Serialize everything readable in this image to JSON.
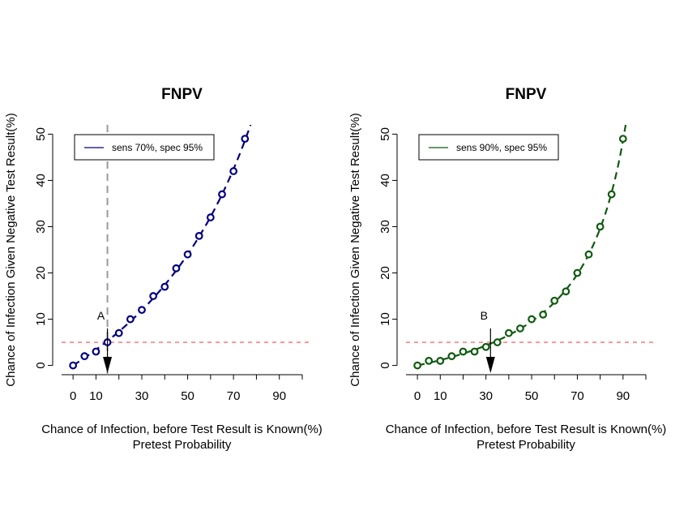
{
  "chart_data": [
    {
      "type": "line",
      "title": "FNPV",
      "xlabel_line1": "Chance of Infection, before Test Result is Known(%)",
      "xlabel_line2": "Pretest Probability",
      "ylabel": "Chance of Infection Given Negative Test Result(%)",
      "xlim": [
        -5,
        100
      ],
      "ylim": [
        -2,
        52
      ],
      "x_ticks": [
        0,
        10,
        30,
        50,
        70,
        90
      ],
      "x_tick_labels": [
        "0",
        "10",
        "30",
        "50",
        "70",
        "90"
      ],
      "y_ticks": [
        0,
        10,
        20,
        30,
        40,
        50
      ],
      "y_tick_labels": [
        "0",
        "10",
        "20",
        "30",
        "40",
        "50"
      ],
      "legend": {
        "label": "sens 70%, spec 95%",
        "position": "top-left"
      },
      "sensitivity": 0.7,
      "specificity": 0.95,
      "color": "#00007f",
      "threshold": {
        "y": 5,
        "color": "#ff6b6b"
      },
      "vline": {
        "x": 15,
        "color": "#999999"
      },
      "annotation": {
        "label": "A",
        "x": 15
      },
      "points": {
        "x": [
          0,
          5,
          10,
          15,
          20,
          25,
          30,
          35,
          40,
          45,
          50,
          55,
          60,
          65,
          70,
          75
        ],
        "y": [
          0,
          2,
          3,
          5,
          7,
          10,
          12,
          15,
          17,
          21,
          24,
          28,
          32,
          37,
          42,
          49
        ]
      }
    },
    {
      "type": "line",
      "title": "FNPV",
      "xlabel_line1": "Chance of Infection, before Test Result is Known(%)",
      "xlabel_line2": "Pretest Probability",
      "ylabel": "Chance of Infection Given Negative Test Result(%)",
      "xlim": [
        -5,
        100
      ],
      "ylim": [
        -2,
        52
      ],
      "x_ticks": [
        0,
        10,
        30,
        50,
        70,
        90
      ],
      "x_tick_labels": [
        "0",
        "10",
        "30",
        "50",
        "70",
        "90"
      ],
      "y_ticks": [
        0,
        10,
        20,
        30,
        40,
        50
      ],
      "y_tick_labels": [
        "0",
        "10",
        "20",
        "30",
        "40",
        "50"
      ],
      "legend": {
        "label": "sens 90%, spec 95%",
        "position": "top-left"
      },
      "sensitivity": 0.9,
      "specificity": 0.95,
      "color": "#0f5a0f",
      "threshold": {
        "y": 5,
        "color": "#ff6b6b"
      },
      "annotation": {
        "label": "B",
        "x": 32
      },
      "points": {
        "x": [
          0,
          5,
          10,
          15,
          20,
          25,
          30,
          35,
          40,
          45,
          50,
          55,
          60,
          65,
          70,
          75,
          80,
          85,
          90
        ],
        "y": [
          0,
          1,
          1,
          2,
          3,
          3,
          4,
          5,
          7,
          8,
          10,
          11,
          14,
          16,
          20,
          24,
          30,
          37,
          49
        ]
      }
    }
  ]
}
